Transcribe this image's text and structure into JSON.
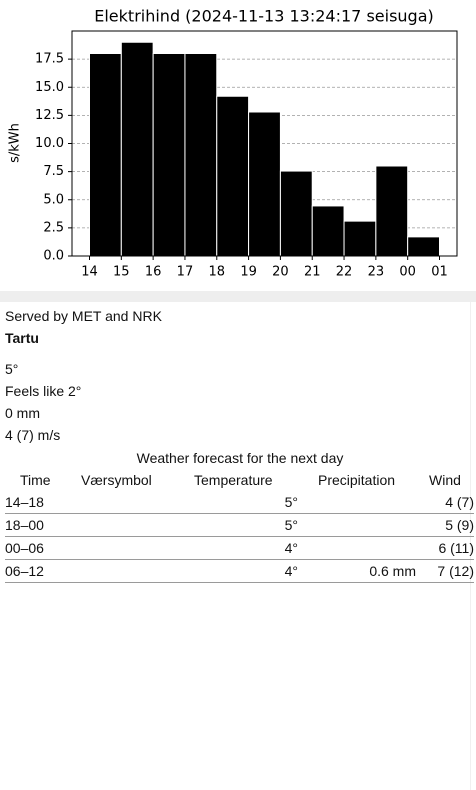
{
  "chart_data": {
    "type": "histogram",
    "title": "Elektrihind (2024-11-13 13:24:17 seisuga)",
    "ylabel": "s/kWh",
    "bins": [
      14,
      15,
      16,
      17,
      18,
      19,
      20,
      21,
      22,
      23,
      24,
      25
    ],
    "values": [
      18.0,
      19.0,
      18.0,
      18.0,
      14.2,
      12.8,
      7.55,
      4.45,
      3.1,
      8.0,
      1.7
    ],
    "color": "#000000",
    "xlim": [
      13.45,
      25.55
    ],
    "xticks": [
      14,
      15,
      16,
      17,
      18,
      19,
      20,
      21,
      22,
      23,
      {
        "value": 24,
        "label": "00"
      },
      {
        "value": 25,
        "label": "01"
      }
    ],
    "ylim": [
      0,
      20
    ],
    "yticks": [
      {
        "value": 0,
        "label": "0.0"
      },
      2.5,
      {
        "value": 5,
        "label": "5.0"
      },
      7.5,
      {
        "value": 10,
        "label": "10.0"
      },
      12.5,
      {
        "value": 15,
        "label": "15.0"
      },
      17.5
    ],
    "grid": true
  },
  "weather": {
    "attribution": "Served by MET and NRK",
    "location": "Tartu",
    "temperature": "5°",
    "feels_like": "Feels like 2°",
    "precipitation": "0 mm",
    "wind": "4 (7) m/s",
    "forecast": {
      "caption": "Weather forecast for the next day",
      "header": [
        "Time",
        "Værsymbol",
        "Temperature",
        "Precipitation",
        "Wind"
      ],
      "rows": [
        {
          "time": "14–18",
          "temperature": "5°",
          "wind": "4 (7)"
        },
        {
          "time": "18–00",
          "temperature": "5°",
          "wind": "5 (9)"
        },
        {
          "time": "00–06",
          "temperature": "4°",
          "wind": "6 (11)"
        },
        {
          "time": "06–12",
          "temperature": "4°",
          "precipitation": "0.6 mm",
          "wind": "7 (12)"
        }
      ]
    }
  }
}
